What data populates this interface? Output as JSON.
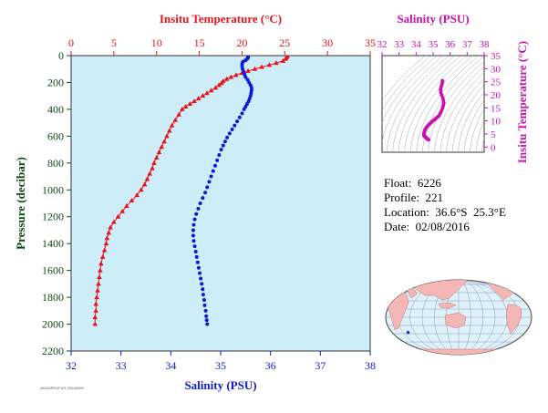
{
  "colors": {
    "plot_bg": "#cdeef8",
    "temperature": "#e8121c",
    "salinity": "#0b1ad4",
    "axis_dark": "#0c4a10",
    "magenta": "#cc10b0",
    "land": "#f5b6b6",
    "ocean": "#dff2fb",
    "float_marker": "#1d2fd6"
  },
  "info": {
    "float": "Float:  6226",
    "profile": "Profile:  221",
    "location": "Location:  36.6°S  25.3°E",
    "date": "Date:  02/08/2016"
  },
  "stamp_text": "A6226PROFILE 20160208",
  "main_chart": {
    "type": "line",
    "title": "",
    "top_axis_label": "Insitu Temperature (°C)",
    "bottom_axis_label": "Salinity (PSU)",
    "left_axis_label": "Pressure (decibar)",
    "temp_range": [
      0,
      35
    ],
    "temp_ticks": [
      "0",
      "5",
      "10",
      "15",
      "20",
      "25",
      "30",
      "35"
    ],
    "sal_range": [
      32,
      38
    ],
    "sal_ticks": [
      "32",
      "33",
      "34",
      "35",
      "36",
      "37",
      "38"
    ],
    "pressure_range": [
      0,
      2200
    ],
    "pressure_ticks": [
      "0",
      "200",
      "400",
      "600",
      "800",
      "1000",
      "1200",
      "1400",
      "1600",
      "1800",
      "2000",
      "2200"
    ],
    "grid": false,
    "series": [
      {
        "name": "Insitu Temperature (°C)",
        "axis": "top",
        "marker": "triangle",
        "points": [
          [
            25.3,
            5
          ],
          [
            25.2,
            15
          ],
          [
            25.1,
            25
          ],
          [
            24.8,
            40
          ],
          [
            24.0,
            55
          ],
          [
            23.2,
            70
          ],
          [
            22.3,
            85
          ],
          [
            21.5,
            100
          ],
          [
            20.7,
            115
          ],
          [
            20.0,
            130
          ],
          [
            19.3,
            145
          ],
          [
            18.7,
            160
          ],
          [
            18.2,
            175
          ],
          [
            17.8,
            190
          ],
          [
            17.6,
            205
          ],
          [
            17.3,
            220
          ],
          [
            16.9,
            240
          ],
          [
            16.4,
            260
          ],
          [
            15.9,
            280
          ],
          [
            15.4,
            300
          ],
          [
            14.9,
            320
          ],
          [
            14.4,
            340
          ],
          [
            13.9,
            360
          ],
          [
            13.4,
            380
          ],
          [
            13.0,
            400
          ],
          [
            12.6,
            440
          ],
          [
            12.2,
            480
          ],
          [
            11.8,
            520
          ],
          [
            11.5,
            560
          ],
          [
            11.2,
            600
          ],
          [
            10.9,
            640
          ],
          [
            10.6,
            680
          ],
          [
            10.3,
            720
          ],
          [
            10.0,
            760
          ],
          [
            9.7,
            800
          ],
          [
            9.5,
            840
          ],
          [
            9.2,
            880
          ],
          [
            8.9,
            920
          ],
          [
            8.6,
            960
          ],
          [
            8.2,
            1000
          ],
          [
            7.7,
            1040
          ],
          [
            7.1,
            1080
          ],
          [
            6.5,
            1120
          ],
          [
            6.0,
            1160
          ],
          [
            5.5,
            1200
          ],
          [
            5.0,
            1240
          ],
          [
            4.6,
            1280
          ],
          [
            4.4,
            1320
          ],
          [
            4.2,
            1360
          ],
          [
            4.1,
            1400
          ],
          [
            3.9,
            1450
          ],
          [
            3.7,
            1500
          ],
          [
            3.5,
            1550
          ],
          [
            3.4,
            1600
          ],
          [
            3.3,
            1650
          ],
          [
            3.2,
            1700
          ],
          [
            3.1,
            1750
          ],
          [
            3.0,
            1800
          ],
          [
            2.9,
            1850
          ],
          [
            2.9,
            1900
          ],
          [
            2.8,
            1950
          ],
          [
            2.8,
            2000
          ]
        ]
      },
      {
        "name": "Salinity (PSU)",
        "axis": "bottom",
        "marker": "circle",
        "points": [
          [
            35.55,
            5
          ],
          [
            35.55,
            15
          ],
          [
            35.53,
            25
          ],
          [
            35.5,
            35
          ],
          [
            35.45,
            45
          ],
          [
            35.43,
            60
          ],
          [
            35.43,
            80
          ],
          [
            35.44,
            100
          ],
          [
            35.46,
            120
          ],
          [
            35.48,
            140
          ],
          [
            35.5,
            160
          ],
          [
            35.54,
            180
          ],
          [
            35.57,
            200
          ],
          [
            35.6,
            220
          ],
          [
            35.62,
            240
          ],
          [
            35.62,
            260
          ],
          [
            35.61,
            280
          ],
          [
            35.6,
            300
          ],
          [
            35.58,
            320
          ],
          [
            35.56,
            340
          ],
          [
            35.53,
            360
          ],
          [
            35.5,
            380
          ],
          [
            35.47,
            400
          ],
          [
            35.43,
            430
          ],
          [
            35.38,
            460
          ],
          [
            35.33,
            490
          ],
          [
            35.28,
            520
          ],
          [
            35.23,
            550
          ],
          [
            35.18,
            580
          ],
          [
            35.13,
            610
          ],
          [
            35.09,
            640
          ],
          [
            35.05,
            670
          ],
          [
            35.01,
            700
          ],
          [
            34.97,
            740
          ],
          [
            34.93,
            780
          ],
          [
            34.89,
            820
          ],
          [
            34.85,
            860
          ],
          [
            34.81,
            900
          ],
          [
            34.77,
            940
          ],
          [
            34.73,
            980
          ],
          [
            34.69,
            1020
          ],
          [
            34.64,
            1060
          ],
          [
            34.59,
            1100
          ],
          [
            34.55,
            1140
          ],
          [
            34.51,
            1180
          ],
          [
            34.48,
            1220
          ],
          [
            34.46,
            1260
          ],
          [
            34.45,
            1300
          ],
          [
            34.45,
            1340
          ],
          [
            34.46,
            1380
          ],
          [
            34.48,
            1420
          ],
          [
            34.5,
            1460
          ],
          [
            34.52,
            1500
          ],
          [
            34.54,
            1540
          ],
          [
            34.56,
            1580
          ],
          [
            34.58,
            1620
          ],
          [
            34.6,
            1660
          ],
          [
            34.62,
            1700
          ],
          [
            34.64,
            1740
          ],
          [
            34.65,
            1780
          ],
          [
            34.67,
            1820
          ],
          [
            34.68,
            1860
          ],
          [
            34.7,
            1900
          ],
          [
            34.71,
            1940
          ],
          [
            34.72,
            1970
          ],
          [
            34.73,
            2000
          ]
        ]
      }
    ]
  },
  "ts_chart": {
    "type": "scatter",
    "top_axis_label": "Salinity (PSU)",
    "right_axis_label": "Insitu Temperature (°C)",
    "sal_range": [
      32,
      38
    ],
    "sal_ticks": [
      "32",
      "33",
      "34",
      "35",
      "36",
      "37",
      "38"
    ],
    "temp_range": [
      -2,
      35
    ],
    "temp_ticks": [
      "0",
      "5",
      "10",
      "15",
      "20",
      "25",
      "30",
      "35"
    ],
    "points": [
      [
        35.55,
        25.3
      ],
      [
        35.55,
        25.0
      ],
      [
        35.52,
        24.0
      ],
      [
        35.47,
        23.0
      ],
      [
        35.44,
        22.0
      ],
      [
        35.45,
        21.0
      ],
      [
        35.5,
        20.0
      ],
      [
        35.56,
        19.0
      ],
      [
        35.6,
        18.0
      ],
      [
        35.62,
        17.0
      ],
      [
        35.6,
        16.0
      ],
      [
        35.56,
        15.0
      ],
      [
        35.5,
        14.0
      ],
      [
        35.43,
        13.0
      ],
      [
        35.35,
        12.0
      ],
      [
        35.26,
        11.5
      ],
      [
        35.17,
        11.0
      ],
      [
        35.08,
        10.5
      ],
      [
        34.99,
        10.0
      ],
      [
        34.9,
        9.5
      ],
      [
        34.82,
        9.0
      ],
      [
        34.74,
        8.5
      ],
      [
        34.67,
        8.0
      ],
      [
        34.61,
        7.5
      ],
      [
        34.56,
        7.0
      ],
      [
        34.52,
        6.5
      ],
      [
        34.49,
        6.0
      ],
      [
        34.47,
        5.5
      ],
      [
        34.46,
        5.0
      ],
      [
        34.46,
        4.5
      ],
      [
        34.48,
        4.2
      ],
      [
        34.52,
        4.0
      ],
      [
        34.56,
        3.8
      ],
      [
        34.6,
        3.5
      ],
      [
        34.63,
        3.3
      ],
      [
        34.66,
        3.1
      ],
      [
        34.69,
        3.0
      ],
      [
        34.71,
        2.9
      ],
      [
        34.73,
        2.8
      ]
    ]
  },
  "map": {
    "float_lon": 25.3,
    "float_lat": -36.6
  }
}
